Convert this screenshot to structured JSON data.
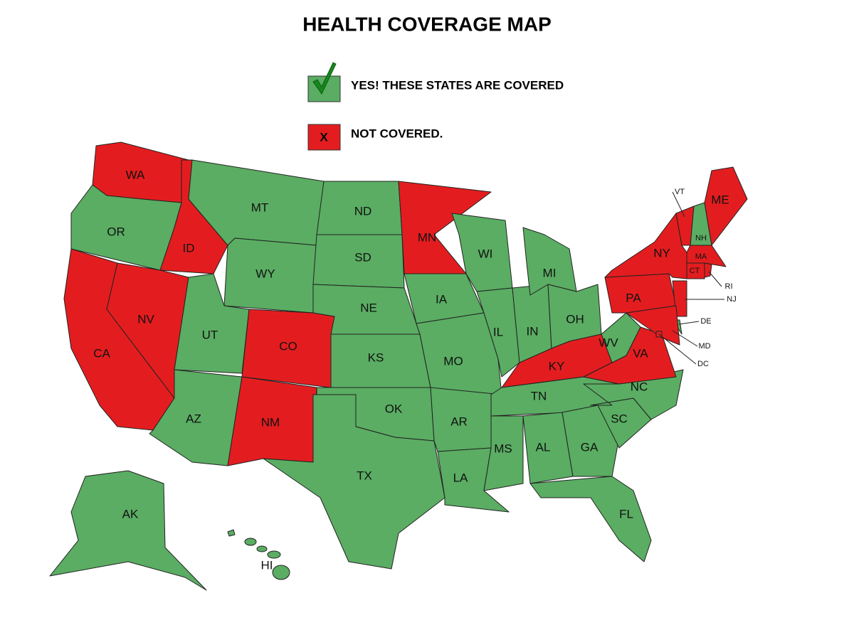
{
  "title": "HEALTH COVERAGE MAP",
  "legend": [
    {
      "label": "YES!  THESE STATES ARE COVERED",
      "covered": true,
      "color": "#5aad63"
    },
    {
      "label": "NOT COVERED.",
      "covered": false,
      "color": "#e31d1f",
      "symbol": "X"
    }
  ],
  "states": [
    {
      "label": "WA",
      "covered": false
    },
    {
      "label": "OR",
      "covered": true
    },
    {
      "label": "CA",
      "covered": false
    },
    {
      "label": "NV",
      "covered": false
    },
    {
      "label": "ID",
      "covered": false
    },
    {
      "label": "MT",
      "covered": true
    },
    {
      "label": "WY",
      "covered": true
    },
    {
      "label": "UT",
      "covered": true
    },
    {
      "label": "CO",
      "covered": false
    },
    {
      "label": "AZ",
      "covered": true
    },
    {
      "label": "NM",
      "covered": false
    },
    {
      "label": "ND",
      "covered": true
    },
    {
      "label": "SD",
      "covered": true
    },
    {
      "label": "NE",
      "covered": true
    },
    {
      "label": "KS",
      "covered": true
    },
    {
      "label": "OK",
      "covered": true
    },
    {
      "label": "TX",
      "covered": true
    },
    {
      "label": "MN",
      "covered": false
    },
    {
      "label": "IA",
      "covered": true
    },
    {
      "label": "MO",
      "covered": true
    },
    {
      "label": "AR",
      "covered": true
    },
    {
      "label": "LA",
      "covered": true
    },
    {
      "label": "WI",
      "covered": true
    },
    {
      "label": "IL",
      "covered": true
    },
    {
      "label": "IN",
      "covered": true
    },
    {
      "label": "MI",
      "covered": true
    },
    {
      "label": "OH",
      "covered": true
    },
    {
      "label": "KY",
      "covered": false
    },
    {
      "label": "TN",
      "covered": true
    },
    {
      "label": "MS",
      "covered": true
    },
    {
      "label": "AL",
      "covered": true
    },
    {
      "label": "GA",
      "covered": true
    },
    {
      "label": "FL",
      "covered": true
    },
    {
      "label": "SC",
      "covered": true
    },
    {
      "label": "NC",
      "covered": true
    },
    {
      "label": "VA",
      "covered": false
    },
    {
      "label": "WV",
      "covered": true
    },
    {
      "label": "PA",
      "covered": false
    },
    {
      "label": "NY",
      "covered": false
    },
    {
      "label": "VT",
      "covered": false
    },
    {
      "label": "NH",
      "covered": true
    },
    {
      "label": "ME",
      "covered": false
    },
    {
      "label": "MA",
      "covered": false
    },
    {
      "label": "CT",
      "covered": false
    },
    {
      "label": "RI",
      "covered": false
    },
    {
      "label": "NJ",
      "covered": false
    },
    {
      "label": "DE",
      "covered": true
    },
    {
      "label": "MD",
      "covered": false
    },
    {
      "label": "DC",
      "covered": false
    },
    {
      "label": "AK",
      "covered": true
    },
    {
      "label": "HI",
      "covered": true
    }
  ]
}
